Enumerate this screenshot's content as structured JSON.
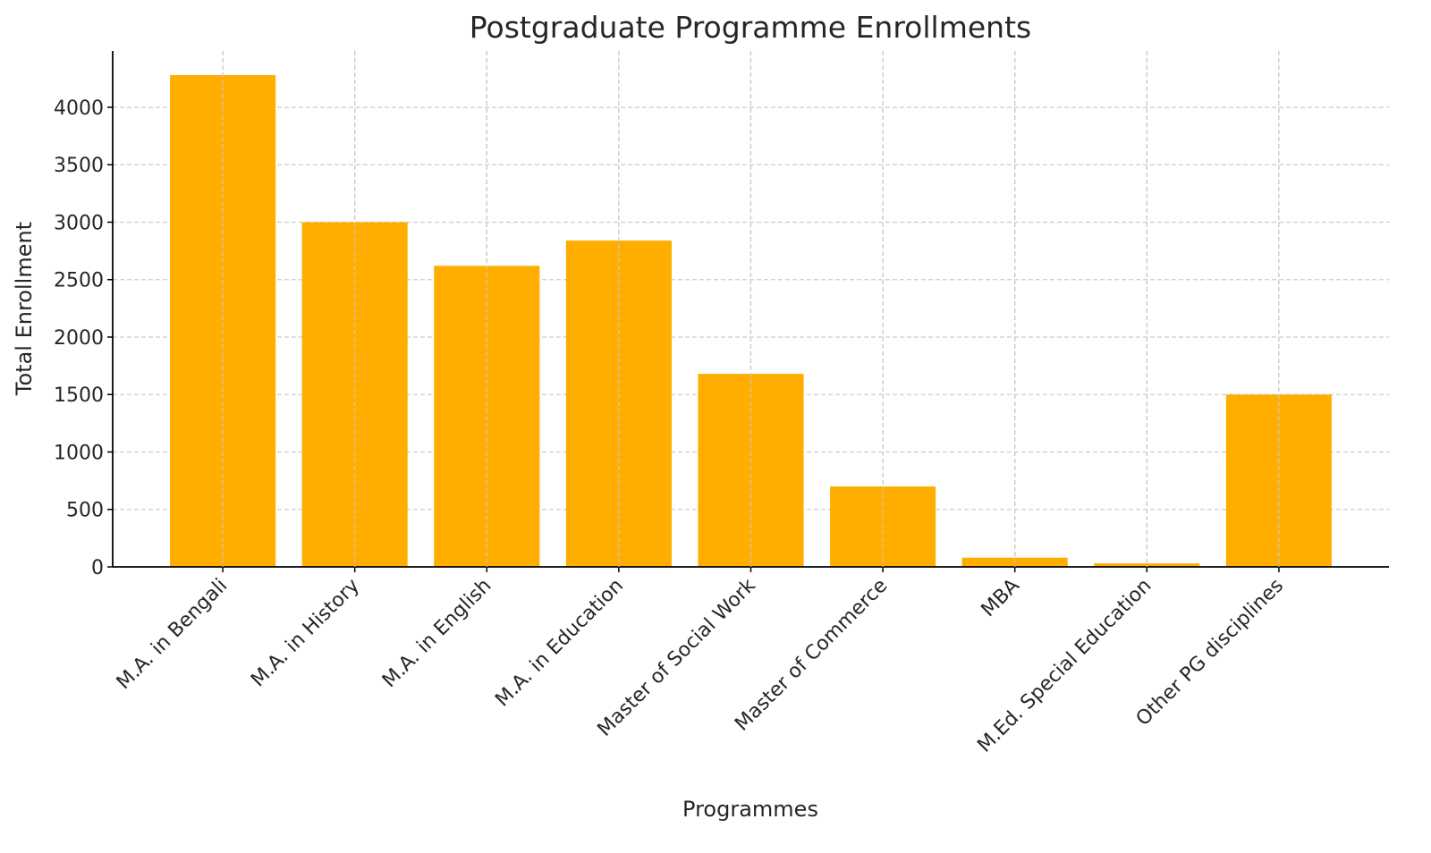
{
  "chart_data": {
    "type": "bar",
    "title": "Postgraduate Programme Enrollments",
    "xlabel": "Programmes",
    "ylabel": "Total Enrollment",
    "categories": [
      "M.A. in Bengali",
      "M.A. in History",
      "M.A. in English",
      "M.A. in Education",
      "Master of Social Work",
      "Master of Commerce",
      "MBA",
      "M.Ed. Special Education",
      "Other PG disciplines"
    ],
    "values": [
      4280,
      3000,
      2620,
      2840,
      1680,
      700,
      80,
      30,
      1500
    ],
    "ylim": [
      0,
      4490
    ],
    "yticks": [
      0,
      500,
      1000,
      1500,
      2000,
      2500,
      3000,
      3500,
      4000
    ],
    "grid": true,
    "bar_color": "#FFAE00"
  }
}
